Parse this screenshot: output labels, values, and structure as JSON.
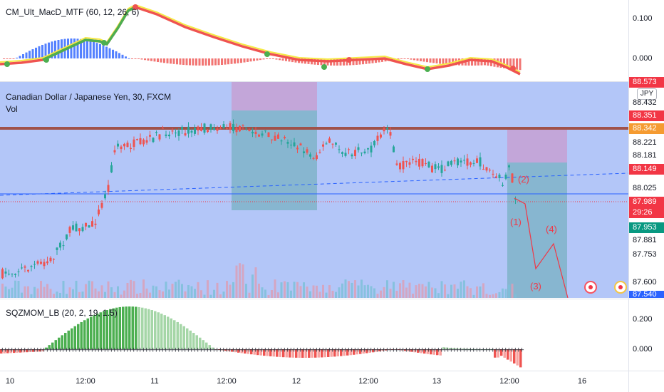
{
  "macd_pane": {
    "title": "CM_Ult_MacD_MTF (60, 12, 26, 6)",
    "ticks": [
      "0.100",
      "0.000"
    ]
  },
  "main_pane": {
    "title": "Canadian Dollar / Japanese Yen, 30, FXCM",
    "sub_title": "Vol",
    "currency_button": "JPY",
    "ticks": [
      "88.432",
      "88.221",
      "88.181",
      "88.025",
      "87.881",
      "87.753",
      "87.600"
    ],
    "labels": {
      "top_cut": "88.573",
      "red1": "88.351",
      "orange": "88.342",
      "red2": "88.149",
      "last_price": "87.989",
      "countdown": "29:26",
      "green": "87.953",
      "bottom_blue": "87.540"
    },
    "wave_labels": [
      "(1)",
      "(2)",
      "(3)",
      "(4)"
    ]
  },
  "sqz_pane": {
    "title": "SQZMOM_LB (20, 2, 19, 1.5)",
    "ticks": [
      "0.200",
      "0.000"
    ]
  },
  "time_axis": [
    "10",
    "12:00",
    "11",
    "12:00",
    "12",
    "12:00",
    "13",
    "12:00",
    "16"
  ],
  "colors": {
    "bull": "#26a69a",
    "bear": "#ef5350",
    "highlight": "#a6bcf7",
    "resistance": "#a0524a",
    "price_label": "#f23645",
    "green_label": "#089981",
    "blue_label": "#2962ff",
    "orange_label": "#f59b31"
  }
}
